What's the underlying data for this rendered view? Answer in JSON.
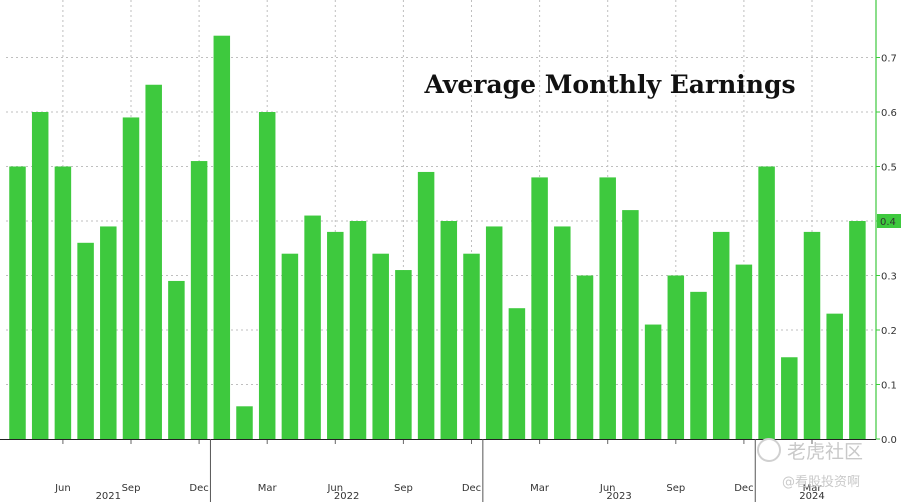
{
  "chart_data": {
    "type": "bar",
    "title": "Average Monthly Earnings",
    "bar_color": "#3ec93e",
    "grid": true,
    "grid_color": "#bfbfbf",
    "ylim": [
      0,
      0.8
    ],
    "yticks": [
      "0.0",
      "0.1",
      "0.2",
      "0.3",
      "0.4",
      "0.5",
      "0.6",
      "0.7"
    ],
    "y_axis_side": "right",
    "last_value_marker": "0.4",
    "categories": [
      "2021-04",
      "2021-05",
      "2021-06",
      "2021-07",
      "2021-08",
      "2021-09",
      "2021-10",
      "2021-11",
      "2021-12",
      "2022-01",
      "2022-02",
      "2022-03",
      "2022-04",
      "2022-05",
      "2022-06",
      "2022-07",
      "2022-08",
      "2022-09",
      "2022-10",
      "2022-11",
      "2022-12",
      "2023-01",
      "2023-02",
      "2023-03",
      "2023-04",
      "2023-05",
      "2023-06",
      "2023-07",
      "2023-08",
      "2023-09",
      "2023-10",
      "2023-11",
      "2023-12",
      "2024-01",
      "2024-02",
      "2024-03",
      "2024-04",
      "2024-05"
    ],
    "values": [
      0.5,
      0.6,
      0.5,
      0.36,
      0.39,
      0.59,
      0.65,
      0.29,
      0.51,
      0.74,
      0.06,
      0.6,
      0.34,
      0.41,
      0.38,
      0.4,
      0.34,
      0.31,
      0.49,
      0.4,
      0.34,
      0.39,
      0.24,
      0.48,
      0.39,
      0.3,
      0.48,
      0.42,
      0.21,
      0.3,
      0.27,
      0.38,
      0.32,
      0.5,
      0.15,
      0.38,
      0.23,
      0.4
    ],
    "x_month_ticks": [
      "Jun",
      "Sep",
      "Dec",
      "Mar",
      "Jun",
      "Sep",
      "Dec",
      "Mar",
      "Jun",
      "Sep",
      "Dec",
      "Mar"
    ],
    "x_year_labels": [
      "2021",
      "2022",
      "2023",
      "2024"
    ]
  },
  "watermark": {
    "brand": "老虎社区",
    "author": "@看股投资啊"
  }
}
